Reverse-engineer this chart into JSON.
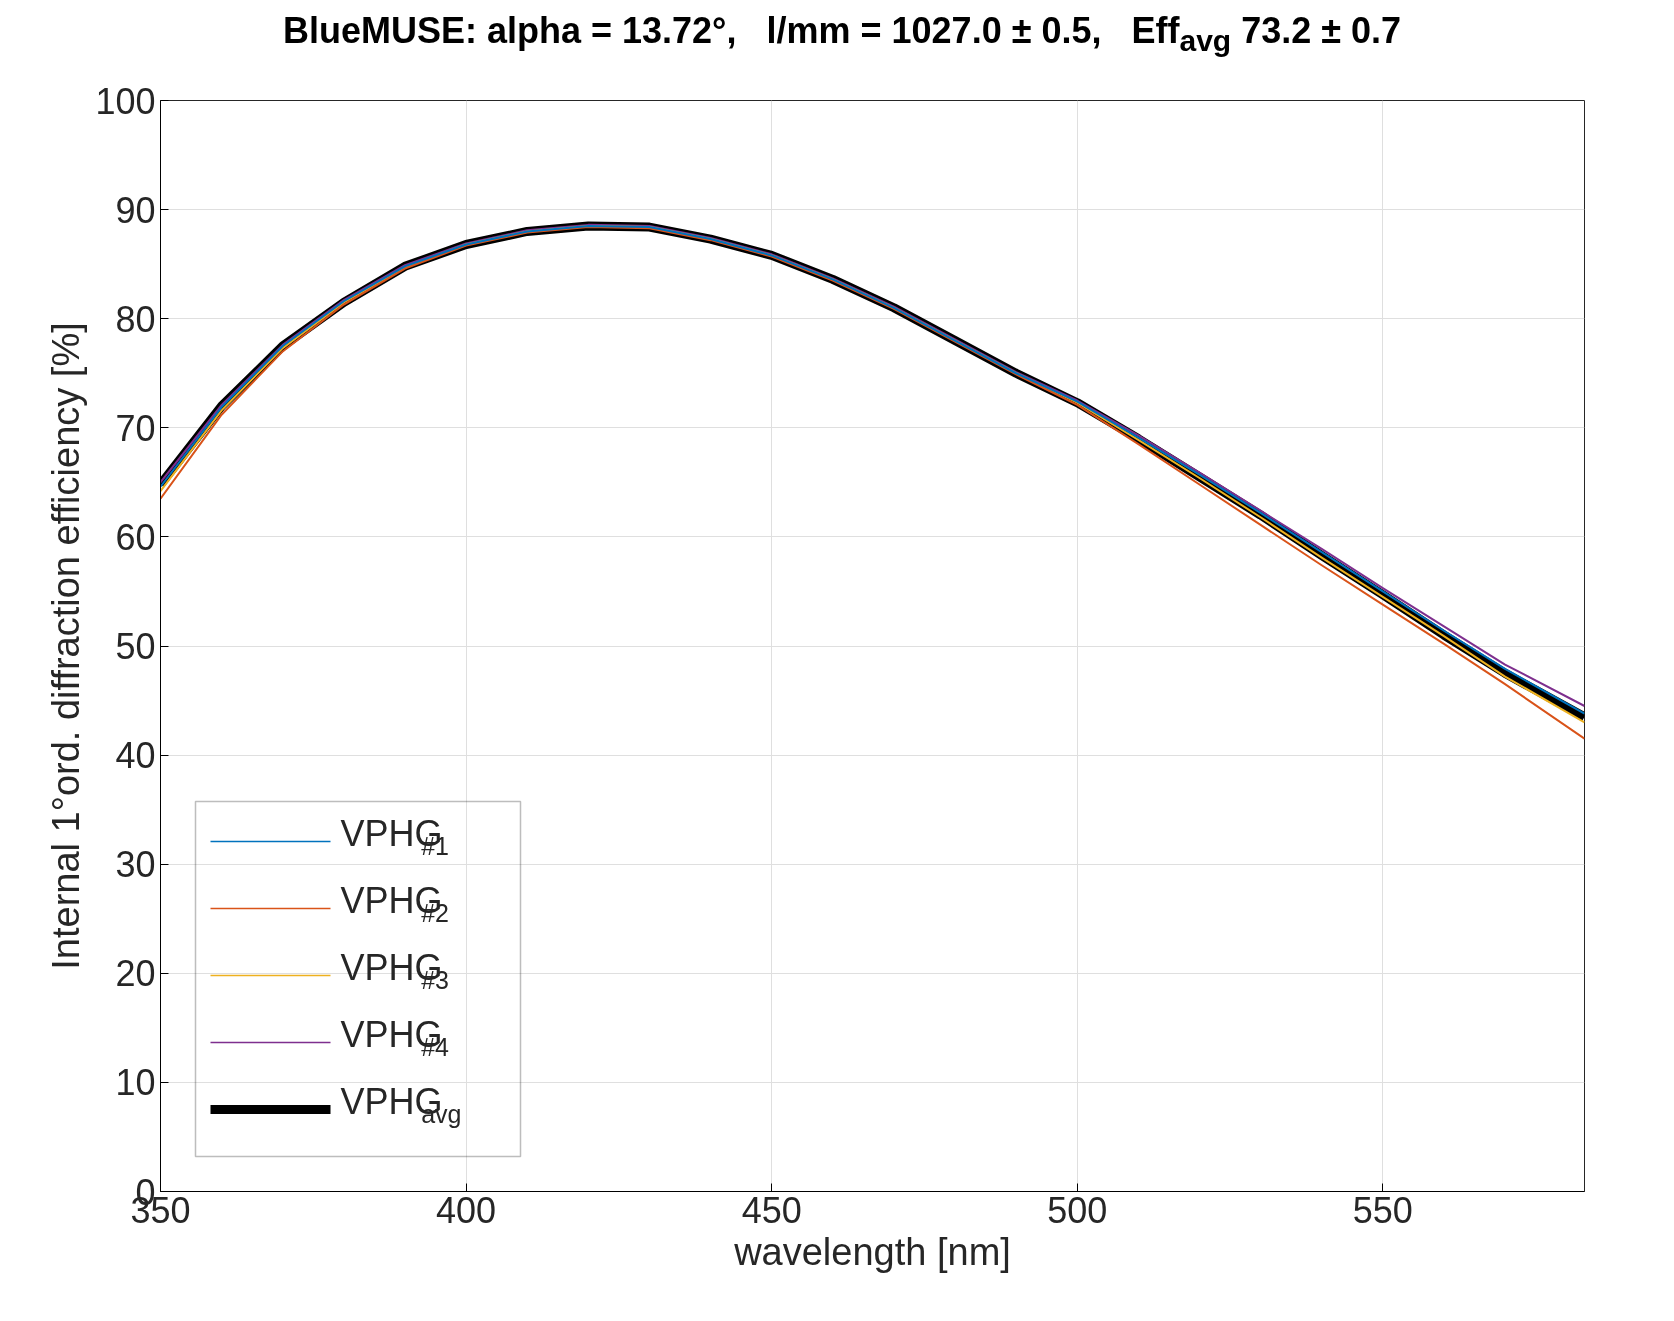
{
  "chart_data": {
    "type": "line",
    "title": "BlueMUSE: alpha = 13.72°,   l/mm = 1027.0 ± 0.5,   Eff$_{avg}$ 73.2 ± 0.7",
    "xlabel": "wavelength [nm]",
    "ylabel": "Internal 1°ord. diffraction efficiency [%]",
    "x": [
      350,
      360,
      370,
      380,
      390,
      400,
      410,
      420,
      430,
      440,
      450,
      460,
      470,
      480,
      490,
      500,
      510,
      520,
      530,
      540,
      550,
      560,
      570,
      583
    ],
    "series": [
      {
        "name": "VPHG$_{#1}$",
        "color": "#0072bd",
        "values": [
          64.6,
          71.9,
          77.5,
          81.6,
          84.8,
          86.8,
          88.0,
          88.5,
          88.4,
          87.3,
          85.8,
          83.6,
          81.0,
          78.0,
          75.0,
          72.4,
          69.1,
          65.7,
          62.2,
          58.6,
          55.0,
          51.4,
          47.9,
          43.8
        ]
      },
      {
        "name": "VPHG$_{#2}$",
        "color": "#d95319",
        "values": [
          63.5,
          71.2,
          77.0,
          81.3,
          84.6,
          86.7,
          87.9,
          88.4,
          88.3,
          87.2,
          85.7,
          83.5,
          80.9,
          77.9,
          74.9,
          72.1,
          68.5,
          64.8,
          61.1,
          57.4,
          53.8,
          50.2,
          46.5,
          41.5
        ]
      },
      {
        "name": "VPHG$_{#3}$",
        "color": "#edb120",
        "values": [
          64.2,
          71.6,
          77.3,
          81.5,
          84.7,
          86.8,
          88.0,
          88.5,
          88.4,
          87.3,
          85.8,
          83.6,
          81.0,
          78.0,
          75.0,
          72.3,
          68.9,
          65.4,
          61.8,
          58.1,
          54.5,
          50.9,
          47.2,
          43.0
        ]
      },
      {
        "name": "VPHG$_{#4}$",
        "color": "#7e2f8e",
        "values": [
          65.0,
          72.1,
          77.6,
          81.7,
          84.9,
          86.9,
          88.1,
          88.6,
          88.5,
          87.4,
          85.9,
          83.7,
          81.1,
          78.1,
          75.1,
          72.5,
          69.3,
          65.9,
          62.4,
          58.9,
          55.3,
          51.8,
          48.3,
          44.5
        ]
      },
      {
        "name": "VPHG$_{avg}$",
        "color": "#000000",
        "values": [
          64.8,
          72.0,
          77.5,
          81.5,
          84.8,
          86.8,
          88.0,
          88.5,
          88.4,
          87.3,
          85.8,
          83.6,
          81.0,
          78.0,
          75.0,
          72.3,
          69.0,
          65.5,
          62.0,
          58.3,
          54.7,
          51.0,
          47.5,
          43.5
        ]
      }
    ],
    "xlim": [
      350,
      583
    ],
    "ylim": [
      0,
      100
    ],
    "xticks": [
      350,
      400,
      450,
      500,
      550
    ],
    "yticks": [
      0,
      10,
      20,
      30,
      40,
      50,
      60,
      70,
      80,
      90,
      100
    ],
    "grid": true,
    "legend": "bottom left",
    "line_style": "solid",
    "marker": "none"
  }
}
